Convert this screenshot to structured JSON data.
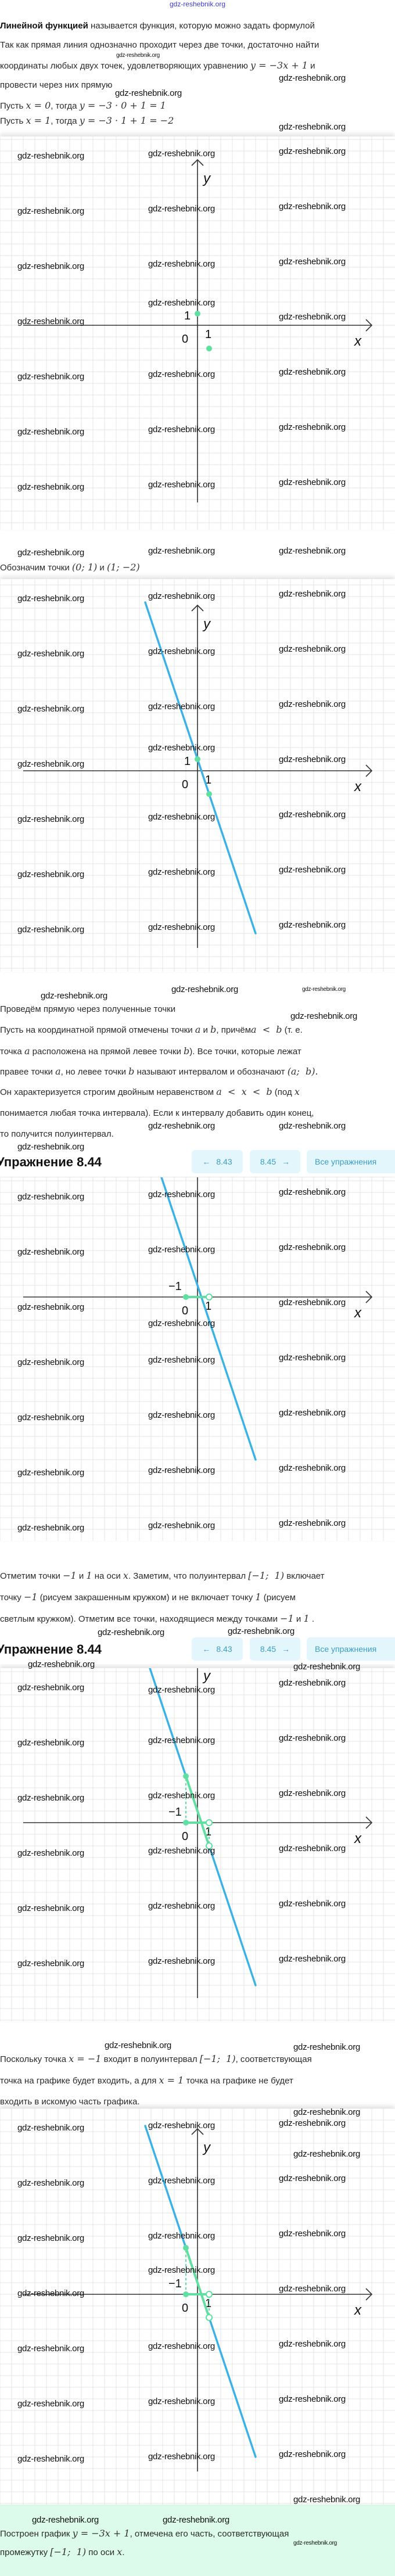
{
  "watermark": "gdz-reshebnik.org",
  "colors": {
    "line": "#3bb2e6",
    "highlight": "#5fe0a0",
    "nav_bg": "#e3f6fb",
    "nav_text": "#3c9dc4",
    "answer_bg": "#dcfbea"
  },
  "sections": {
    "intro": [
      [
        {
          "b": "Линейной функцией"
        },
        {
          "t": " называется функция, которую можно задать формулой"
        }
      ],
      [
        {
          "t": "Так как прямая линия однозначно проходит через две точки, достаточно найти"
        }
      ],
      [
        {
          "t": "координаты любых двух точек, удовлетворяющих уравнению "
        },
        {
          "m": "y = −3x + 1"
        },
        {
          "t": " и"
        }
      ],
      [
        {
          "t": "провести через них прямую"
        }
      ],
      [
        {
          "t": "Пусть "
        },
        {
          "m": "x = 0"
        },
        {
          "t": ", тогда "
        },
        {
          "m": "y = −3 · 0 + 1 = 1"
        }
      ],
      [
        {
          "t": "Пусть "
        },
        {
          "m": "x = 1"
        },
        {
          "t": ", тогда "
        },
        {
          "m": "y = −3 · 1 + 1 = −2"
        }
      ]
    ],
    "mark_points": [
      [
        {
          "t": "Обозначим точки "
        },
        {
          "m": "(0; 1)"
        },
        {
          "t": " и "
        },
        {
          "m": "(1; −2)"
        }
      ]
    ],
    "draw_line": [
      [
        {
          "t": "Проведём прямую через полученные точки"
        }
      ],
      [
        {
          "t": "Пусть на координатной прямой отмечены точки "
        },
        {
          "m": "a"
        },
        {
          "t": " и "
        },
        {
          "m": "b"
        },
        {
          "t": ", причём"
        },
        {
          "m": "a  <  b"
        },
        {
          "t": " (т. е."
        }
      ],
      [
        {
          "t": "точка "
        },
        {
          "m": "a"
        },
        {
          "t": " расположена на прямой левее точки "
        },
        {
          "m": "b"
        },
        {
          "t": "). Все точки, которые лежат"
        }
      ],
      [
        {
          "t": "правее точки "
        },
        {
          "m": "a"
        },
        {
          "t": ", но левее точки "
        },
        {
          "m": "b"
        },
        {
          "t": " называют интервалом и обозначают "
        },
        {
          "m": "(a;  b)."
        }
      ],
      [
        {
          "t": "Он характеризуется строгим двойным неравенством "
        },
        {
          "m": "a  <  x  <  b"
        },
        {
          "t": " (под "
        },
        {
          "m": "x"
        }
      ],
      [
        {
          "t": "понимается любая точка интервала). Если к интервалу добавить один конец,"
        }
      ],
      [
        {
          "t": "то получится полуинтервал."
        }
      ]
    ],
    "mark_interval": [
      [
        {
          "t": "Отметим точки "
        },
        {
          "m": "−1"
        },
        {
          "t": " и "
        },
        {
          "m": "1"
        },
        {
          "t": " на оси "
        },
        {
          "m": "x"
        },
        {
          "t": ". Заметим, что полуинтервал "
        },
        {
          "m": "[−1;  1)"
        },
        {
          "t": " включает"
        }
      ],
      [
        {
          "t": "точку "
        },
        {
          "m": "−1"
        },
        {
          "t": " (рисуем закрашенным кружком) и не включает точку "
        },
        {
          "m": "1"
        },
        {
          "t": " (рисуем"
        }
      ],
      [
        {
          "t": "светлым кружком). Отметим все точки, находящиеся между точками "
        },
        {
          "m": "−1"
        },
        {
          "t": " и "
        },
        {
          "m": "1"
        },
        {
          "t": " ."
        }
      ]
    ],
    "graph_part": [
      [
        {
          "t": "Поскольку точка "
        },
        {
          "m": "x = −1"
        },
        {
          "t": " входит в полуинтервал "
        },
        {
          "m": "[−1;  1)"
        },
        {
          "t": ", соответствующая"
        }
      ],
      [
        {
          "t": "точка на графике будет входить, а для "
        },
        {
          "m": "x = 1"
        },
        {
          "t": " точка на графике не будет"
        }
      ],
      [
        {
          "t": "входить в искомую часть графика."
        }
      ]
    ],
    "answer": [
      [
        {
          "t": "Построен график "
        },
        {
          "m": "y = −3x + 1"
        },
        {
          "t": ", отмечена его часть, соответствующая"
        }
      ],
      [
        {
          "t": "промежутку "
        },
        {
          "m": "[−1;  1)"
        },
        {
          "t": " по оси "
        },
        {
          "m": "x"
        },
        {
          "t": "."
        }
      ]
    ]
  },
  "exercise_nav": {
    "title": "Упражнение 8.44",
    "prev_label": "8.43",
    "next_label": "8.45",
    "all_label": "Все упражнения",
    "prev_icon": "arrow-left-icon",
    "next_icon": "arrow-right-icon"
  },
  "graphs": [
    {
      "function": "y = -3x + 1",
      "show_line": false,
      "axis_labels": {
        "x": "x",
        "y": "y"
      },
      "tick_labels": {
        "origin": "0",
        "x_one": "1",
        "y_one": "1"
      },
      "points": [
        {
          "x": 0,
          "y": 1,
          "style": "filled"
        },
        {
          "x": 1,
          "y": -2,
          "style": "filled"
        }
      ]
    },
    {
      "function": "y = -3x + 1",
      "show_line": true,
      "axis_labels": {
        "x": "x",
        "y": "y"
      },
      "tick_labels": {
        "origin": "0",
        "x_one": "1",
        "y_one": "1"
      },
      "points": [
        {
          "x": 0,
          "y": 1,
          "style": "filled"
        },
        {
          "x": 1,
          "y": -2,
          "style": "filled"
        }
      ]
    },
    {
      "function": "y = -3x + 1",
      "show_line": true,
      "axis_labels": {
        "x": "x",
        "y": "y"
      },
      "tick_labels": {
        "origin": "0",
        "x_one": "1",
        "x_minus_one": "−1"
      },
      "interval": {
        "from": -1,
        "to": 1,
        "from_style": "filled",
        "to_style": "open"
      },
      "highlight_graph_part": false
    },
    {
      "function": "y = -3x + 1",
      "show_line": true,
      "axis_labels": {
        "x": "x",
        "y": "y"
      },
      "tick_labels": {
        "origin": "0",
        "x_one": "1",
        "x_minus_one": "−1"
      },
      "interval": {
        "from": -1,
        "to": 1,
        "from_style": "filled",
        "to_style": "open"
      },
      "highlight_graph_part": true
    },
    {
      "function": "y = -3x + 1",
      "show_line": true,
      "axis_labels": {
        "x": "x",
        "y": "y"
      },
      "tick_labels": {
        "origin": "0",
        "x_one": "1",
        "x_minus_one": "−1"
      },
      "interval": {
        "from": -1,
        "to": 1,
        "from_style": "filled",
        "to_style": "open"
      },
      "highlight_graph_part": true
    }
  ]
}
